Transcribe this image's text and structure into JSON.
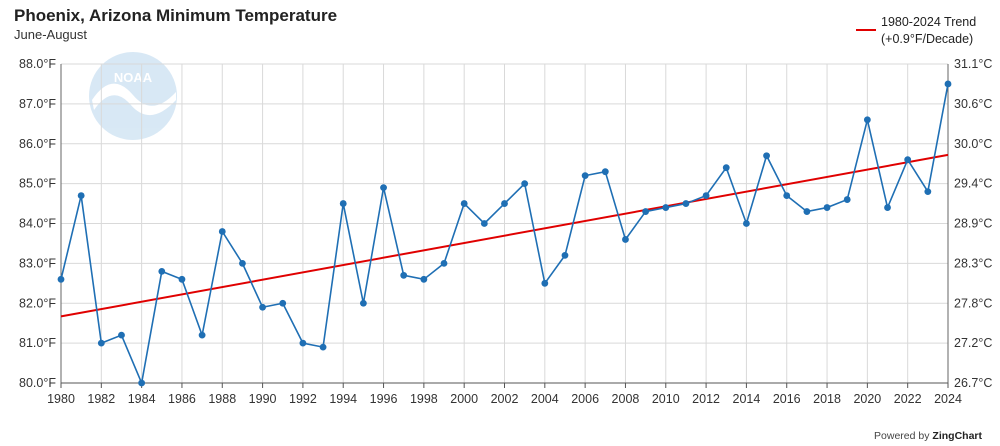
{
  "chart_data": {
    "type": "line",
    "title": "Phoenix, Arizona Minimum Temperature",
    "subtitle": "June-August",
    "x": [
      1980,
      1981,
      1982,
      1983,
      1984,
      1985,
      1986,
      1987,
      1988,
      1989,
      1990,
      1991,
      1992,
      1993,
      1994,
      1995,
      1996,
      1997,
      1998,
      1999,
      2000,
      2001,
      2002,
      2003,
      2004,
      2005,
      2006,
      2007,
      2008,
      2009,
      2010,
      2011,
      2012,
      2013,
      2014,
      2015,
      2016,
      2017,
      2018,
      2019,
      2020,
      2021,
      2022,
      2023,
      2024
    ],
    "series": [
      {
        "values": [
          82.6,
          84.7,
          81.0,
          81.2,
          80.0,
          82.8,
          82.6,
          81.2,
          83.8,
          83.0,
          81.9,
          82.0,
          81.0,
          80.9,
          84.5,
          82.0,
          84.9,
          82.7,
          82.6,
          83.0,
          84.5,
          84.0,
          84.5,
          85.0,
          82.5,
          83.2,
          85.2,
          85.3,
          83.6,
          84.3,
          84.4,
          84.5,
          84.7,
          85.4,
          84.0,
          85.7,
          84.7,
          84.3,
          84.4,
          84.6,
          86.6,
          84.4,
          85.6,
          84.8,
          87.5
        ],
        "color": "#1f6fb4"
      },
      {
        "name": "1980-2024 Trend\n(+0.9°F/Decade)",
        "type": "trend",
        "x": [
          1980,
          2024
        ],
        "values": [
          81.67,
          85.72
        ],
        "color": "#e00000"
      }
    ],
    "y_left": {
      "ylim": [
        80.0,
        88.0
      ],
      "ticks": [
        "80.0°F",
        "81.0°F",
        "82.0°F",
        "83.0°F",
        "84.0°F",
        "85.0°F",
        "86.0°F",
        "87.0°F",
        "88.0°F"
      ]
    },
    "y_right": {
      "ticks": [
        "26.7°C",
        "27.2°C",
        "27.8°C",
        "28.3°C",
        "28.9°C",
        "29.4°C",
        "30.0°C",
        "30.6°C",
        "31.1°C"
      ]
    },
    "x_ticks": [
      "1980",
      "1982",
      "1984",
      "1986",
      "1988",
      "1990",
      "1992",
      "1994",
      "1996",
      "1998",
      "2000",
      "2002",
      "2004",
      "2006",
      "2008",
      "2010",
      "2012",
      "2014",
      "2016",
      "2018",
      "2020",
      "2022",
      "2024"
    ],
    "xlim": [
      1980,
      2024
    ],
    "grid": true,
    "legend_position": "top-right"
  },
  "legend": {
    "trend_line1": "1980-2024 Trend",
    "trend_line2": "(+0.9°F/Decade)"
  },
  "watermark_text": "NOAA",
  "footer": {
    "powered_by": "Powered by",
    "brand": "ZingChart"
  }
}
